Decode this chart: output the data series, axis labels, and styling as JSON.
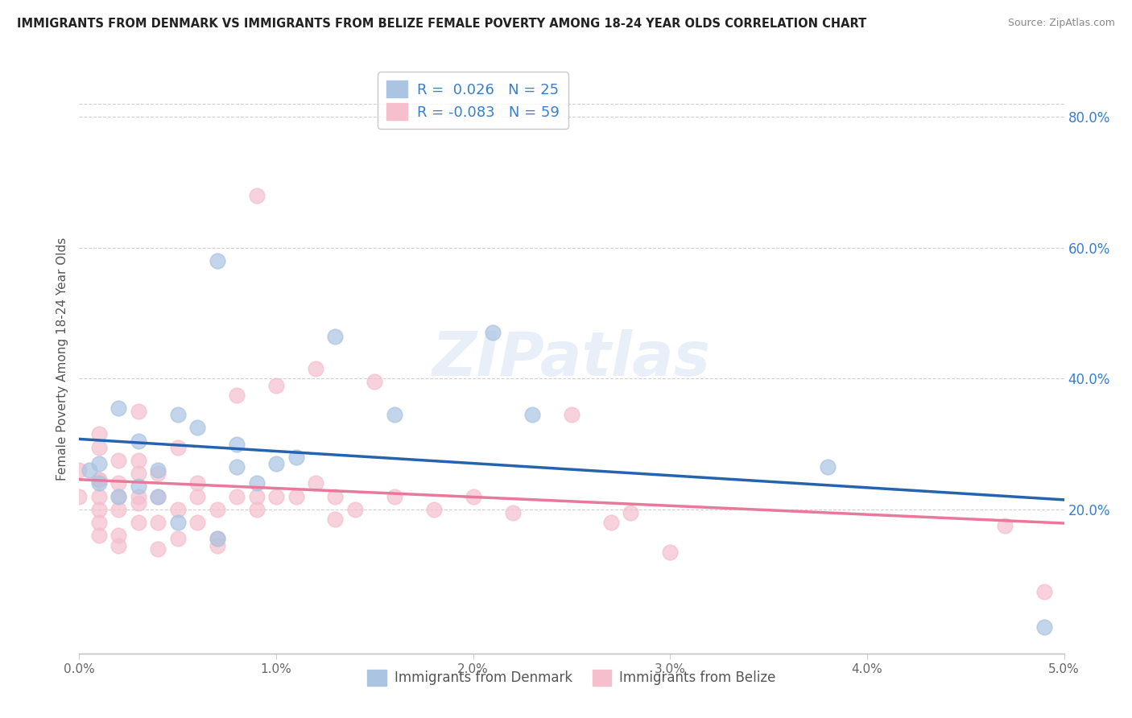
{
  "title": "IMMIGRANTS FROM DENMARK VS IMMIGRANTS FROM BELIZE FEMALE POVERTY AMONG 18-24 YEAR OLDS CORRELATION CHART",
  "source": "Source: ZipAtlas.com",
  "ylabel": "Female Poverty Among 18-24 Year Olds",
  "xlim": [
    0.0,
    0.05
  ],
  "ylim": [
    -0.02,
    0.88
  ],
  "xticks": [
    0.0,
    0.01,
    0.02,
    0.03,
    0.04,
    0.05
  ],
  "xticklabels": [
    "0.0%",
    "1.0%",
    "2.0%",
    "3.0%",
    "4.0%",
    "5.0%"
  ],
  "yticks_right": [
    0.2,
    0.4,
    0.6,
    0.8
  ],
  "ytick_right_labels": [
    "20.0%",
    "40.0%",
    "60.0%",
    "80.0%"
  ],
  "denmark_R": 0.026,
  "denmark_N": 25,
  "belize_R": -0.083,
  "belize_N": 59,
  "denmark_color": "#aac4e2",
  "denmark_edge_color": "#aac4e2",
  "denmark_line_color": "#2563ae",
  "belize_color": "#f5bfce",
  "belize_edge_color": "#f5bfce",
  "belize_line_color": "#e8799a",
  "legend_label_denmark": "Immigrants from Denmark",
  "legend_label_belize": "Immigrants from Belize",
  "watermark": "ZIPatlas",
  "background_color": "#ffffff",
  "grid_color": "#d0d0d0",
  "title_color": "#222222",
  "source_color": "#888888",
  "ylabel_color": "#555555",
  "tick_color": "#666666",
  "right_tick_color": "#3a7ecb",
  "legend_text_color": "#3a7ecb",
  "denmark_x": [
    0.0005,
    0.001,
    0.001,
    0.002,
    0.002,
    0.003,
    0.003,
    0.004,
    0.004,
    0.005,
    0.005,
    0.006,
    0.007,
    0.007,
    0.008,
    0.008,
    0.009,
    0.01,
    0.011,
    0.013,
    0.016,
    0.021,
    0.023,
    0.038,
    0.049
  ],
  "denmark_y": [
    0.26,
    0.24,
    0.27,
    0.22,
    0.355,
    0.235,
    0.305,
    0.22,
    0.26,
    0.18,
    0.345,
    0.325,
    0.58,
    0.155,
    0.3,
    0.265,
    0.24,
    0.27,
    0.28,
    0.465,
    0.345,
    0.47,
    0.345,
    0.265,
    0.02
  ],
  "belize_x": [
    0.0,
    0.0,
    0.001,
    0.001,
    0.001,
    0.001,
    0.001,
    0.001,
    0.001,
    0.001,
    0.002,
    0.002,
    0.002,
    0.002,
    0.002,
    0.002,
    0.003,
    0.003,
    0.003,
    0.003,
    0.003,
    0.003,
    0.004,
    0.004,
    0.004,
    0.004,
    0.005,
    0.005,
    0.005,
    0.006,
    0.006,
    0.006,
    0.007,
    0.007,
    0.007,
    0.008,
    0.008,
    0.009,
    0.009,
    0.009,
    0.01,
    0.01,
    0.011,
    0.012,
    0.012,
    0.013,
    0.013,
    0.014,
    0.015,
    0.016,
    0.018,
    0.02,
    0.022,
    0.025,
    0.027,
    0.028,
    0.03,
    0.047,
    0.049
  ],
  "belize_y": [
    0.22,
    0.26,
    0.16,
    0.2,
    0.245,
    0.22,
    0.245,
    0.295,
    0.18,
    0.315,
    0.22,
    0.145,
    0.16,
    0.2,
    0.24,
    0.275,
    0.18,
    0.21,
    0.22,
    0.255,
    0.275,
    0.35,
    0.14,
    0.18,
    0.22,
    0.255,
    0.155,
    0.2,
    0.295,
    0.18,
    0.22,
    0.24,
    0.145,
    0.155,
    0.2,
    0.22,
    0.375,
    0.2,
    0.22,
    0.68,
    0.22,
    0.39,
    0.22,
    0.24,
    0.415,
    0.185,
    0.22,
    0.2,
    0.395,
    0.22,
    0.2,
    0.22,
    0.195,
    0.345,
    0.18,
    0.195,
    0.135,
    0.175,
    0.075
  ]
}
